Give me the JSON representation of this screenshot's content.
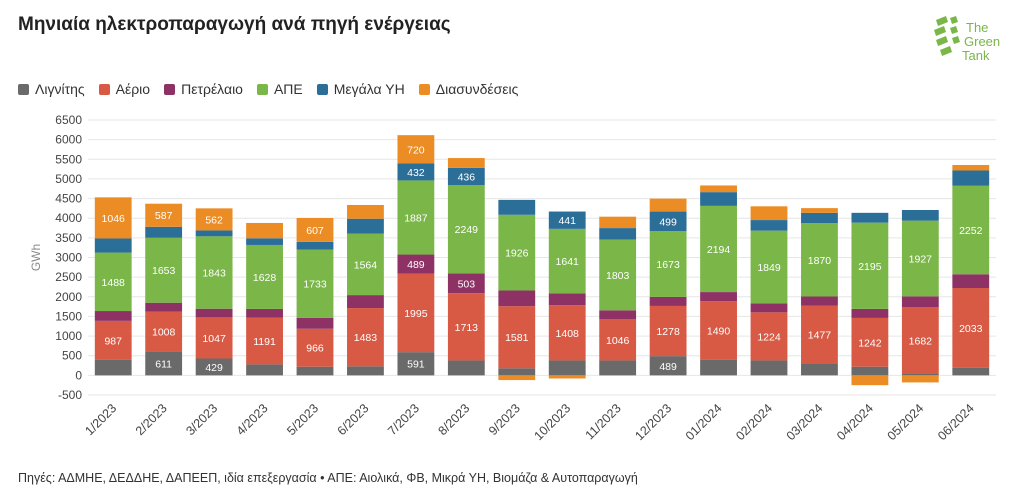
{
  "title": "Μηνιαία ηλεκτροπαραγωγή ανά πηγή ενέργειας",
  "logo": {
    "line1": "The",
    "line2": "Green",
    "line3": "Tank"
  },
  "source": "Πηγές: ΑΔΜΗΕ, ΔΕΔΔΗΕ, ΔΑΠΕΕΠ, ιδία επεξεργασία • ΑΠΕ: Αιολικά, ΦΒ, Μικρά ΥΗ, Βιομάζα & Αυτοπαραγωγή",
  "colors": {
    "Λιγνίτης": "#6a6a6a",
    "Αέριο": "#d85a45",
    "Πετρέλαιο": "#8e3165",
    "ΑΠΕ": "#7ab648",
    "Μεγάλα ΥΗ": "#2b6f99",
    "Διασυνδέσεις": "#ec8c24"
  },
  "chart_data": {
    "type": "bar",
    "stacked": true,
    "ylabel": "GWh",
    "ylim": [
      -500,
      6500
    ],
    "yticks": [
      -500,
      0,
      500,
      1000,
      1500,
      2000,
      2500,
      3000,
      3500,
      4000,
      4500,
      5000,
      5500,
      6000,
      6500
    ],
    "grid": true,
    "legend_position": "top-left",
    "categories": [
      "1/2023",
      "2/2023",
      "3/2023",
      "4/2023",
      "5/2023",
      "6/2023",
      "7/2023",
      "8/2023",
      "9/2023",
      "10/2023",
      "11/2023",
      "12/2023",
      "01/2024",
      "02/2024",
      "03/2024",
      "04/2024",
      "05/2024",
      "06/2024"
    ],
    "series": [
      {
        "name": "Λιγνίτης",
        "values": [
          400,
          611,
          429,
          280,
          220,
          230,
          591,
          380,
          180,
          380,
          380,
          489,
          400,
          380,
          300,
          220,
          50,
          190
        ]
      },
      {
        "name": "Αέριο",
        "values": [
          987,
          1008,
          1047,
          1191,
          966,
          1483,
          1995,
          1713,
          1581,
          1408,
          1046,
          1278,
          1490,
          1224,
          1477,
          1242,
          1682,
          2033
        ]
      },
      {
        "name": "Πετρέλαιο",
        "values": [
          250,
          230,
          220,
          220,
          280,
          330,
          489,
          503,
          400,
          300,
          230,
          230,
          230,
          230,
          230,
          230,
          280,
          350
        ]
      },
      {
        "name": "ΑΠΕ",
        "values": [
          1488,
          1653,
          1843,
          1628,
          1733,
          1564,
          1887,
          2249,
          1926,
          1641,
          1803,
          1673,
          2194,
          1849,
          1870,
          2195,
          1927,
          2252
        ]
      },
      {
        "name": "Μεγάλα ΥΗ",
        "values": [
          360,
          280,
          150,
          170,
          200,
          380,
          432,
          436,
          380,
          441,
          290,
          499,
          350,
          270,
          260,
          250,
          270,
          390
        ]
      },
      {
        "name": "Διασυνδέσεις",
        "values": [
          1046,
          587,
          562,
          390,
          607,
          350,
          720,
          250,
          -120,
          -80,
          290,
          330,
          170,
          350,
          120,
          -250,
          -180,
          140
        ]
      }
    ],
    "data_labels": [
      [
        "",
        "611",
        "429",
        "",
        "",
        "",
        "591",
        "",
        "",
        "",
        "",
        "489",
        "",
        "",
        "",
        "",
        "",
        ""
      ],
      [
        "987",
        "1008",
        "1047",
        "1191",
        "966",
        "1483",
        "1995",
        "1713",
        "1581",
        "1408",
        "1046",
        "1278",
        "1490",
        "1224",
        "1477",
        "1242",
        "1682",
        "2033"
      ],
      [
        "",
        "",
        "",
        "",
        "",
        "",
        "489",
        "503",
        "",
        "",
        "",
        "",
        "",
        "",
        "",
        "",
        "",
        ""
      ],
      [
        "1488",
        "1653",
        "1843",
        "1628",
        "1733",
        "1564",
        "1887",
        "2249",
        "1926",
        "1641",
        "1803",
        "1673",
        "2194",
        "1849",
        "1870",
        "2195",
        "1927",
        "2252"
      ],
      [
        "",
        "",
        "",
        "",
        "",
        "",
        "432",
        "436",
        "",
        "441",
        "",
        "499",
        "",
        "",
        "",
        "",
        "",
        ""
      ],
      [
        "1046",
        "587",
        "562",
        "",
        "607",
        "",
        "720",
        "",
        "",
        "",
        "",
        "",
        "",
        "",
        "",
        "",
        "",
        ""
      ]
    ]
  }
}
